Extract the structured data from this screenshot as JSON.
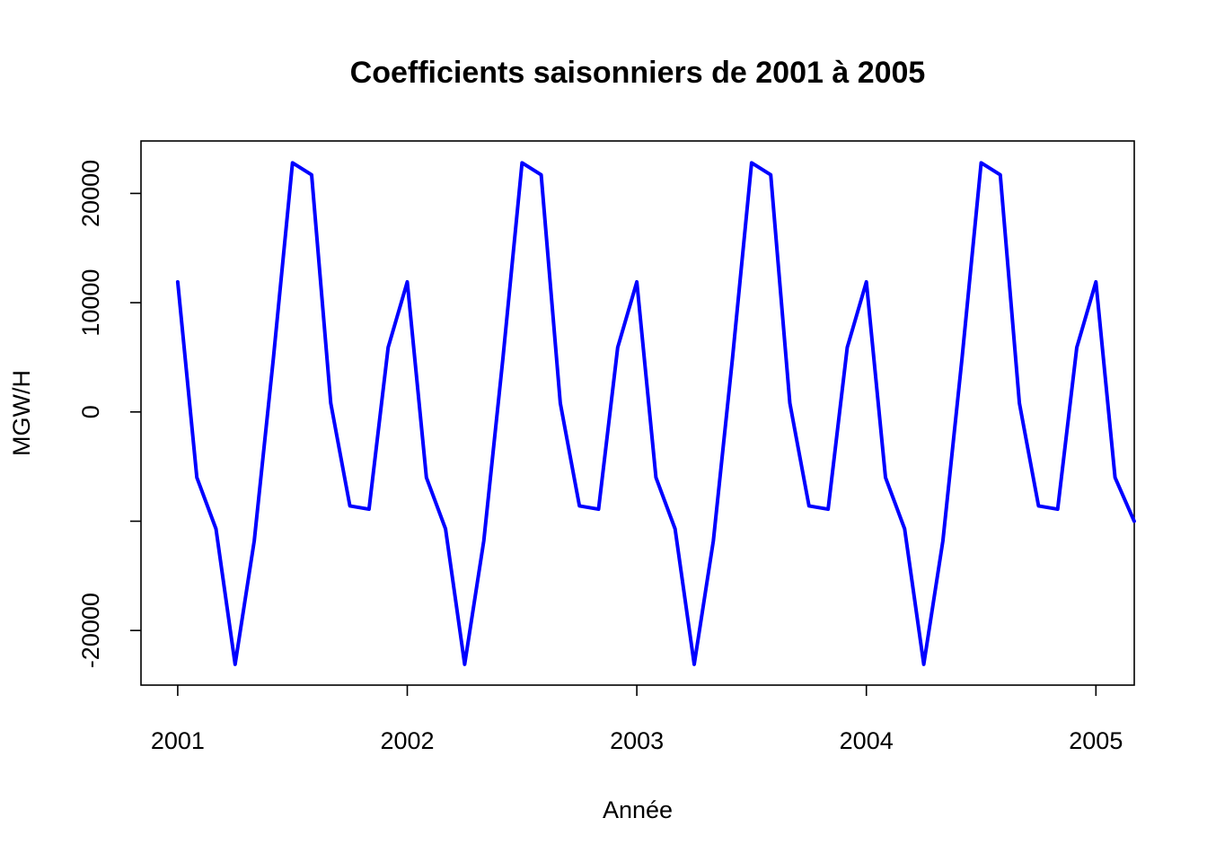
{
  "chart_data": {
    "type": "line",
    "title": "Coefficients saisonniers de 2001 à 2005",
    "xlabel": "Année",
    "ylabel": "MGW/H",
    "xlim": [
      2000.84,
      2005.167
    ],
    "ylim": [
      -25000,
      24800
    ],
    "x_ticks": [
      2001,
      2002,
      2003,
      2004,
      2005
    ],
    "x_tick_labels": [
      "2001",
      "2002",
      "2003",
      "2004",
      "2005"
    ],
    "y_ticks": [
      -20000,
      -10000,
      0,
      10000,
      20000
    ],
    "y_tick_labels": [
      "-20000",
      "",
      "0",
      "10000",
      "20000"
    ],
    "grid": false,
    "series": [
      {
        "color": "#0000ff",
        "start": 2001,
        "frequency": 12,
        "values": [
          11900,
          -6000,
          -10700,
          -23100,
          -11800,
          4900,
          22800,
          21700,
          800,
          -8600,
          -8900,
          5900,
          11900,
          -6000,
          -10700,
          -23100,
          -11800,
          4900,
          22800,
          21700,
          800,
          -8600,
          -8900,
          5900,
          11900,
          -6000,
          -10700,
          -23100,
          -11800,
          4900,
          22800,
          21700,
          800,
          -8600,
          -8900,
          5900,
          11900,
          -6000,
          -10700,
          -23100,
          -11800,
          4900,
          22800,
          21700,
          800,
          -8600,
          -8900,
          5900,
          11900,
          -6000,
          -10000
        ]
      }
    ]
  }
}
